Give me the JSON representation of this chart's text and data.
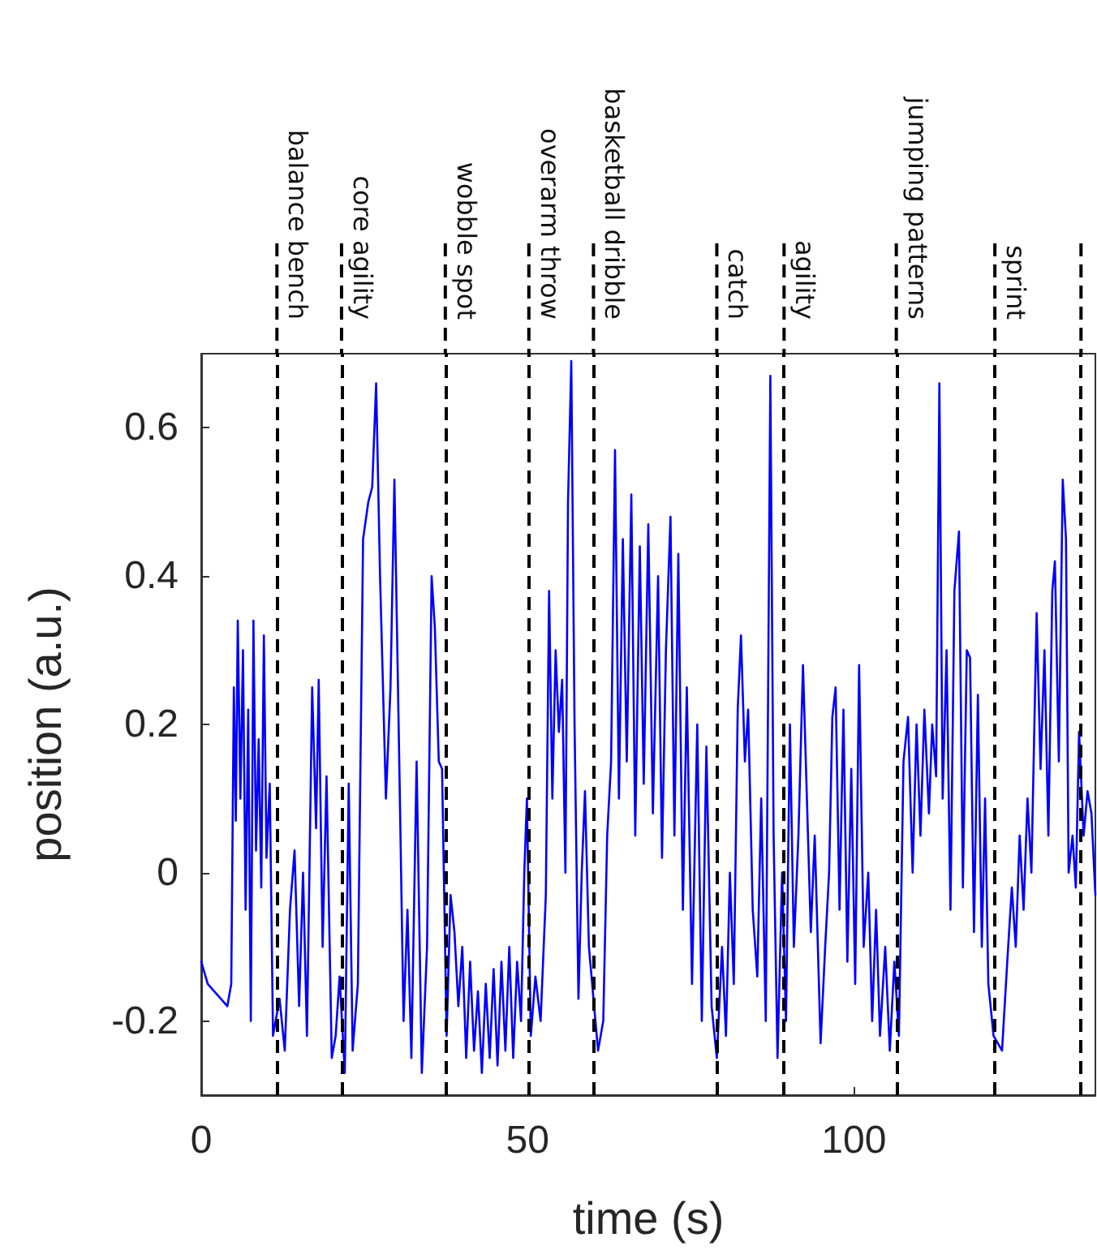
{
  "chart_data": {
    "type": "line",
    "xlabel": "time (s)",
    "ylabel": "position (a.u.)",
    "xlim": [
      0,
      137
    ],
    "xticks": [
      0,
      50,
      100
    ],
    "ylim": [
      -0.3,
      0.7
    ],
    "yticks": [
      -0.2,
      0,
      0.2,
      0.4,
      0.6
    ],
    "grid": false,
    "marker": "none",
    "line_style": "solid",
    "color": "#0000ff",
    "x": [
      0,
      1,
      2,
      3,
      4,
      4.6,
      5.0,
      5.3,
      5.6,
      6.0,
      6.4,
      6.8,
      7.2,
      7.6,
      8.0,
      8.4,
      8.8,
      9.2,
      9.6,
      10.0,
      10.5,
      11.0,
      12.0,
      12.8,
      13.6,
      14.3,
      15.0,
      15.6,
      16.2,
      17.0,
      17.6,
      18.0,
      18.6,
      19.2,
      20.0,
      20.6,
      21.2,
      22.0,
      22.6,
      23.2,
      24.0,
      24.8,
      25.6,
      26.2,
      26.8,
      27.4,
      28.3,
      29.0,
      29.6,
      30.4,
      31.0,
      31.6,
      32.2,
      33.0,
      33.8,
      34.6,
      35.3,
      35.8,
      36.4,
      36.9,
      37.6,
      38.2,
      38.8,
      39.4,
      40.0,
      40.6,
      41.2,
      41.8,
      42.4,
      43.0,
      43.6,
      44.2,
      44.8,
      45.4,
      46.0,
      46.6,
      47.2,
      47.8,
      48.4,
      49.0,
      49.5,
      49.9,
      50.5,
      51.2,
      52.0,
      52.8,
      53.3,
      53.8,
      54.3,
      54.8,
      55.3,
      55.8,
      56.2,
      56.7,
      57.2,
      57.8,
      58.3,
      58.8,
      59.4,
      60.8,
      61.6,
      62.2,
      62.8,
      63.4,
      64.0,
      64.6,
      65.2,
      65.9,
      66.5,
      67.2,
      67.8,
      68.5,
      69.2,
      70.0,
      70.6,
      71.2,
      71.9,
      72.5,
      73.1,
      73.8,
      74.4,
      75.2,
      76.0,
      76.7,
      77.4,
      78.2,
      79.0,
      79.8,
      80.4,
      81.0,
      81.6,
      82.2,
      82.7,
      83.3,
      83.8,
      84.5,
      85.2,
      85.8,
      86.5,
      87.2,
      87.7,
      88.3,
      89.0,
      89.6,
      90.2,
      90.8,
      91.5,
      92.2,
      92.8,
      93.4,
      94.0,
      94.9,
      95.6,
      96.2,
      96.7,
      97.2,
      97.8,
      98.4,
      99.0,
      99.6,
      100.2,
      100.8,
      101.5,
      102.2,
      102.8,
      103.4,
      104.0,
      104.8,
      105.5,
      106.2,
      106.9,
      107.6,
      108.3,
      109.0,
      109.6,
      110.2,
      110.8,
      111.5,
      112.0,
      112.6,
      113.1,
      113.6,
      114.2,
      114.8,
      115.4,
      116.1,
      116.7,
      117.3,
      117.8,
      118.4,
      119.0,
      119.6,
      120.1,
      120.6,
      121.4,
      122.7,
      123.5,
      124.2,
      124.8,
      125.4,
      126.0,
      126.6,
      127.2,
      128.0,
      128.6,
      129.2,
      129.8,
      130.4,
      130.8,
      131.4,
      132.0,
      132.5,
      132.9,
      133.5,
      134.0,
      134.5,
      135.2,
      135.8,
      136.4,
      137.0
    ],
    "values": [
      -0.12,
      -0.15,
      -0.16,
      -0.17,
      -0.18,
      -0.15,
      0.25,
      0.07,
      0.34,
      0.1,
      0.3,
      -0.05,
      0.22,
      -0.2,
      0.34,
      0.03,
      0.18,
      -0.02,
      0.32,
      0.02,
      0.12,
      -0.22,
      -0.17,
      -0.24,
      -0.05,
      0.03,
      -0.18,
      0.0,
      -0.22,
      0.25,
      0.06,
      0.26,
      -0.1,
      0.13,
      -0.25,
      -0.22,
      -0.14,
      -0.27,
      0.12,
      -0.24,
      -0.15,
      0.45,
      0.5,
      0.52,
      0.66,
      0.4,
      0.1,
      0.25,
      0.53,
      0.12,
      -0.2,
      -0.05,
      -0.25,
      0.15,
      -0.27,
      -0.1,
      0.4,
      0.33,
      0.15,
      0.14,
      -0.22,
      -0.03,
      -0.08,
      -0.18,
      -0.1,
      -0.25,
      -0.12,
      -0.24,
      -0.16,
      -0.27,
      -0.15,
      -0.25,
      -0.13,
      -0.26,
      -0.12,
      -0.24,
      -0.1,
      -0.25,
      -0.12,
      -0.2,
      0.0,
      0.1,
      -0.22,
      -0.14,
      -0.2,
      -0.03,
      0.38,
      0.1,
      0.3,
      0.19,
      0.26,
      0.0,
      0.5,
      0.69,
      0.2,
      -0.17,
      0.0,
      0.11,
      -0.1,
      -0.24,
      -0.2,
      0.05,
      0.15,
      0.57,
      0.1,
      0.45,
      0.15,
      0.51,
      0.05,
      0.44,
      0.12,
      0.47,
      0.08,
      0.4,
      0.02,
      0.3,
      0.48,
      0.05,
      0.43,
      -0.05,
      0.25,
      -0.15,
      0.2,
      -0.2,
      0.17,
      -0.18,
      -0.25,
      -0.1,
      -0.22,
      0.0,
      -0.15,
      0.22,
      0.32,
      0.15,
      0.22,
      -0.05,
      -0.14,
      0.1,
      -0.2,
      0.67,
      0.05,
      -0.25,
      0.0,
      -0.2,
      0.2,
      -0.1,
      0.05,
      0.28,
      0.1,
      -0.08,
      0.05,
      -0.23,
      -0.1,
      0.0,
      0.21,
      0.25,
      -0.05,
      0.22,
      -0.12,
      0.14,
      -0.15,
      0.28,
      -0.1,
      0.0,
      -0.2,
      -0.05,
      -0.22,
      -0.1,
      -0.24,
      -0.12,
      -0.22,
      0.15,
      0.21,
      0.0,
      0.2,
      0.05,
      0.22,
      0.08,
      0.2,
      0.13,
      0.66,
      0.1,
      0.3,
      -0.05,
      0.38,
      0.46,
      -0.02,
      0.3,
      0.29,
      -0.08,
      0.24,
      -0.1,
      0.1,
      -0.15,
      -0.22,
      -0.24,
      -0.12,
      -0.02,
      -0.1,
      0.05,
      -0.05,
      0.1,
      0.0,
      0.35,
      0.14,
      0.3,
      0.05,
      0.38,
      0.42,
      0.15,
      0.53,
      0.45,
      0.0,
      0.05,
      -0.02,
      0.19,
      0.05,
      0.11,
      0.08,
      -0.03
    ],
    "ref_lines": [
      {
        "axis": "x",
        "value": 11.6,
        "label": "balance bench",
        "color": "#000000",
        "line_style": "dashed"
      },
      {
        "axis": "x",
        "value": 21.5,
        "label": "core agility",
        "color": "#000000",
        "line_style": "dashed"
      },
      {
        "axis": "x",
        "value": 37.4,
        "label": "wobble spot",
        "color": "#000000",
        "line_style": "dashed"
      },
      {
        "axis": "x",
        "value": 50.2,
        "label": "overarm throw",
        "color": "#000000",
        "line_style": "dashed"
      },
      {
        "axis": "x",
        "value": 60.1,
        "label": "basketball dribble",
        "color": "#000000",
        "line_style": "dashed"
      },
      {
        "axis": "x",
        "value": 79.0,
        "label": "catch",
        "color": "#000000",
        "line_style": "dashed"
      },
      {
        "axis": "x",
        "value": 89.3,
        "label": "agility",
        "color": "#000000",
        "line_style": "dashed"
      },
      {
        "axis": "x",
        "value": 106.5,
        "label": "jumping patterns",
        "color": "#000000",
        "line_style": "dashed"
      },
      {
        "axis": "x",
        "value": 121.6,
        "label": "sprint",
        "color": "#000000",
        "line_style": "dashed"
      },
      {
        "axis": "x",
        "value": 134.8,
        "label": null,
        "color": "#000000",
        "line_style": "dashed"
      }
    ]
  }
}
